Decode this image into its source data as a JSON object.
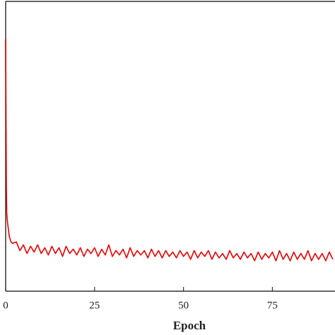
{
  "chart_data": {
    "type": "line",
    "x_label": "Epoch",
    "x": [
      0,
      0.1,
      0.2,
      0.3,
      0.5,
      0.8,
      1,
      1.5,
      2,
      3,
      4,
      5,
      6,
      7,
      8,
      9,
      10,
      11,
      12,
      13,
      14,
      15,
      16,
      17,
      18,
      19,
      20,
      21,
      22,
      23,
      24,
      25,
      26,
      27,
      28,
      29,
      30,
      31,
      32,
      33,
      34,
      35,
      36,
      37,
      38,
      39,
      40,
      41,
      42,
      43,
      44,
      45,
      46,
      47,
      48,
      49,
      50,
      51,
      52,
      53,
      54,
      55,
      56,
      57,
      58,
      59,
      60,
      61,
      62,
      63,
      64,
      65,
      66,
      67,
      68,
      69,
      70,
      71,
      72,
      73,
      74,
      75,
      76,
      77,
      78,
      79,
      80,
      81,
      82,
      83,
      84,
      85,
      86,
      87,
      88,
      89,
      90,
      91,
      92
    ],
    "series": [
      {
        "color": "#e60000",
        "values": [
          0.87,
          0.62,
          0.37,
          0.27,
          0.24,
          0.21,
          0.19,
          0.17,
          0.165,
          0.17,
          0.14,
          0.16,
          0.13,
          0.155,
          0.135,
          0.16,
          0.13,
          0.15,
          0.125,
          0.155,
          0.13,
          0.15,
          0.12,
          0.155,
          0.13,
          0.145,
          0.125,
          0.15,
          0.12,
          0.145,
          0.13,
          0.15,
          0.12,
          0.145,
          0.125,
          0.16,
          0.12,
          0.14,
          0.125,
          0.145,
          0.115,
          0.15,
          0.12,
          0.14,
          0.125,
          0.14,
          0.115,
          0.145,
          0.12,
          0.14,
          0.115,
          0.14,
          0.12,
          0.135,
          0.115,
          0.14,
          0.12,
          0.135,
          0.11,
          0.14,
          0.115,
          0.135,
          0.12,
          0.14,
          0.11,
          0.135,
          0.115,
          0.13,
          0.11,
          0.14,
          0.115,
          0.13,
          0.11,
          0.135,
          0.115,
          0.13,
          0.105,
          0.135,
          0.11,
          0.13,
          0.115,
          0.135,
          0.105,
          0.14,
          0.11,
          0.13,
          0.105,
          0.135,
          0.11,
          0.13,
          0.11,
          0.14,
          0.105,
          0.13,
          0.11,
          0.13,
          0.105,
          0.135,
          0.11
        ]
      }
    ],
    "xlim": [
      0,
      92.6
    ],
    "ylim": [
      0,
      1
    ],
    "xticks": [
      0,
      25,
      50,
      75
    ]
  }
}
